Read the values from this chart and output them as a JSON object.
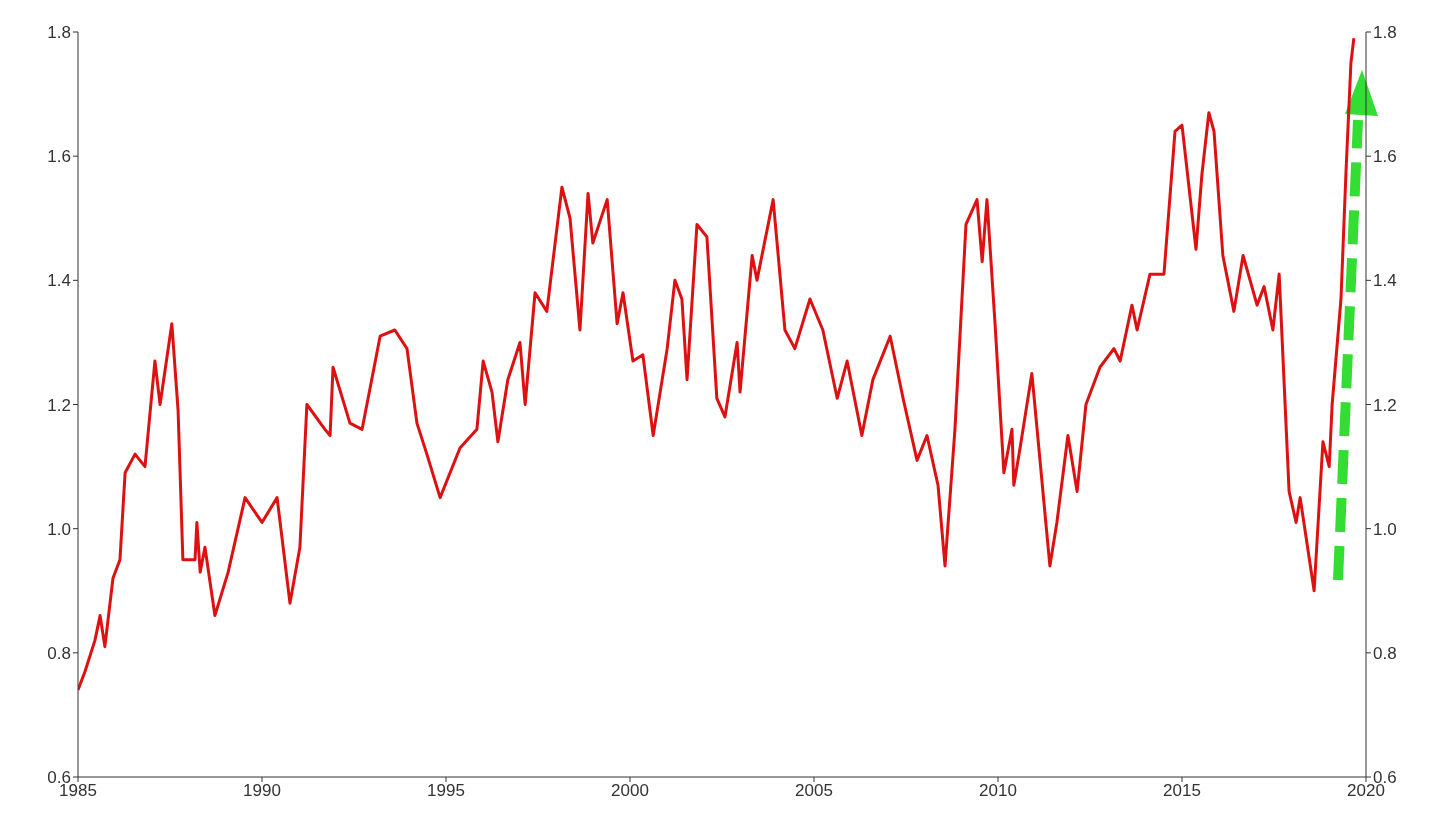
{
  "chart_data": {
    "type": "line",
    "x": [
      1985.0,
      1985.19,
      1985.46,
      1985.6,
      1985.73,
      1985.95,
      1986.14,
      1986.28,
      1986.55,
      1986.82,
      1987.09,
      1987.23,
      1987.55,
      1987.72,
      1987.85,
      1988.18,
      1988.23,
      1988.32,
      1988.45,
      1988.72,
      1989.08,
      1989.54,
      1990.0,
      1990.41,
      1990.76,
      1991.03,
      1991.22,
      1991.71,
      1991.85,
      1991.93,
      1992.39,
      1992.72,
      1993.21,
      1993.61,
      1993.94,
      1994.21,
      1994.48,
      1994.84,
      1995.38,
      1995.84,
      1996.01,
      1996.25,
      1996.41,
      1996.68,
      1997.01,
      1997.15,
      1997.42,
      1997.74,
      1998.15,
      1998.37,
      1998.64,
      1998.86,
      1998.99,
      1999.38,
      1999.65,
      1999.81,
      2000.08,
      2000.35,
      2000.63,
      2001.01,
      2001.22,
      2001.41,
      2001.55,
      2001.82,
      2002.09,
      2002.36,
      2002.58,
      2002.91,
      2002.99,
      2003.32,
      2003.45,
      2003.89,
      2004.21,
      2004.48,
      2004.89,
      2005.24,
      2005.63,
      2005.9,
      2006.3,
      2006.6,
      2007.07,
      2007.42,
      2007.8,
      2008.07,
      2008.37,
      2008.56,
      2008.83,
      2009.13,
      2009.43,
      2009.57,
      2009.7,
      2009.92,
      2010.16,
      2010.38,
      2010.43,
      2010.6,
      2010.92,
      2011.41,
      2011.6,
      2011.9,
      2012.15,
      2012.39,
      2012.77,
      2013.15,
      2013.32,
      2013.64,
      2013.78,
      2014.13,
      2014.51,
      2014.81,
      2015.0,
      2015.38,
      2015.54,
      2015.73,
      2015.87,
      2016.11,
      2016.41,
      2016.66,
      2017.04,
      2017.23,
      2017.47,
      2017.64,
      2017.91,
      2018.1,
      2018.21,
      2018.59,
      2018.83,
      2019.0,
      2019.08,
      2019.32,
      2019.46,
      2019.59,
      2019.67
    ],
    "series": [
      {
        "color": "#dd1111",
        "values": [
          0.74,
          0.77,
          0.82,
          0.86,
          0.81,
          0.92,
          0.95,
          1.09,
          1.12,
          1.1,
          1.27,
          1.2,
          1.33,
          1.19,
          0.95,
          0.95,
          1.01,
          0.93,
          0.97,
          0.86,
          0.93,
          1.05,
          1.01,
          1.05,
          0.88,
          0.97,
          1.2,
          1.16,
          1.15,
          1.26,
          1.17,
          1.16,
          1.31,
          1.32,
          1.29,
          1.17,
          1.12,
          1.05,
          1.13,
          1.16,
          1.27,
          1.22,
          1.14,
          1.24,
          1.3,
          1.2,
          1.38,
          1.35,
          1.55,
          1.5,
          1.32,
          1.54,
          1.46,
          1.53,
          1.33,
          1.38,
          1.27,
          1.28,
          1.15,
          1.29,
          1.4,
          1.37,
          1.24,
          1.49,
          1.47,
          1.21,
          1.18,
          1.3,
          1.22,
          1.44,
          1.4,
          1.53,
          1.32,
          1.29,
          1.37,
          1.32,
          1.21,
          1.27,
          1.15,
          1.24,
          1.31,
          1.21,
          1.11,
          1.15,
          1.07,
          0.94,
          1.16,
          1.49,
          1.53,
          1.43,
          1.53,
          1.33,
          1.09,
          1.16,
          1.07,
          1.13,
          1.25,
          0.94,
          1.01,
          1.15,
          1.06,
          1.2,
          1.26,
          1.29,
          1.27,
          1.36,
          1.32,
          1.41,
          1.41,
          1.64,
          1.65,
          1.45,
          1.57,
          1.67,
          1.64,
          1.44,
          1.35,
          1.44,
          1.36,
          1.39,
          1.32,
          1.41,
          1.06,
          1.01,
          1.05,
          0.9,
          1.14,
          1.1,
          1.2,
          1.37,
          1.58,
          1.75,
          1.79
        ]
      }
    ],
    "xlim": [
      1985,
      2020
    ],
    "xticks": [
      1985,
      1990,
      1995,
      2000,
      2005,
      2010,
      2015,
      2020
    ],
    "ylim": [
      0.6,
      1.8
    ],
    "yticks": [
      {
        "value": 0.6,
        "label": "0.6"
      },
      {
        "value": 0.8,
        "label": "0.8"
      },
      {
        "value": 1.0,
        "label": "1.0"
      },
      {
        "value": 1.2,
        "label": "1.2"
      },
      {
        "value": 1.4,
        "label": "1.4"
      },
      {
        "value": 1.6,
        "label": "1.6"
      },
      {
        "value": 1.8,
        "label": "1.8"
      }
    ],
    "y2lim": [
      0.6,
      1.8
    ],
    "y2ticks": [
      {
        "value": 0.6,
        "label": "0.6"
      },
      {
        "value": 0.8,
        "label": "0.8"
      },
      {
        "value": 1.0,
        "label": "1.0"
      },
      {
        "value": 1.2,
        "label": "1.2"
      },
      {
        "value": 1.4,
        "label": "1.4"
      },
      {
        "value": 1.6,
        "label": "1.6"
      },
      {
        "value": 1.8,
        "label": "1.8"
      }
    ],
    "grid": false,
    "legend": false,
    "marker": "none",
    "line_style": "solid"
  }
}
